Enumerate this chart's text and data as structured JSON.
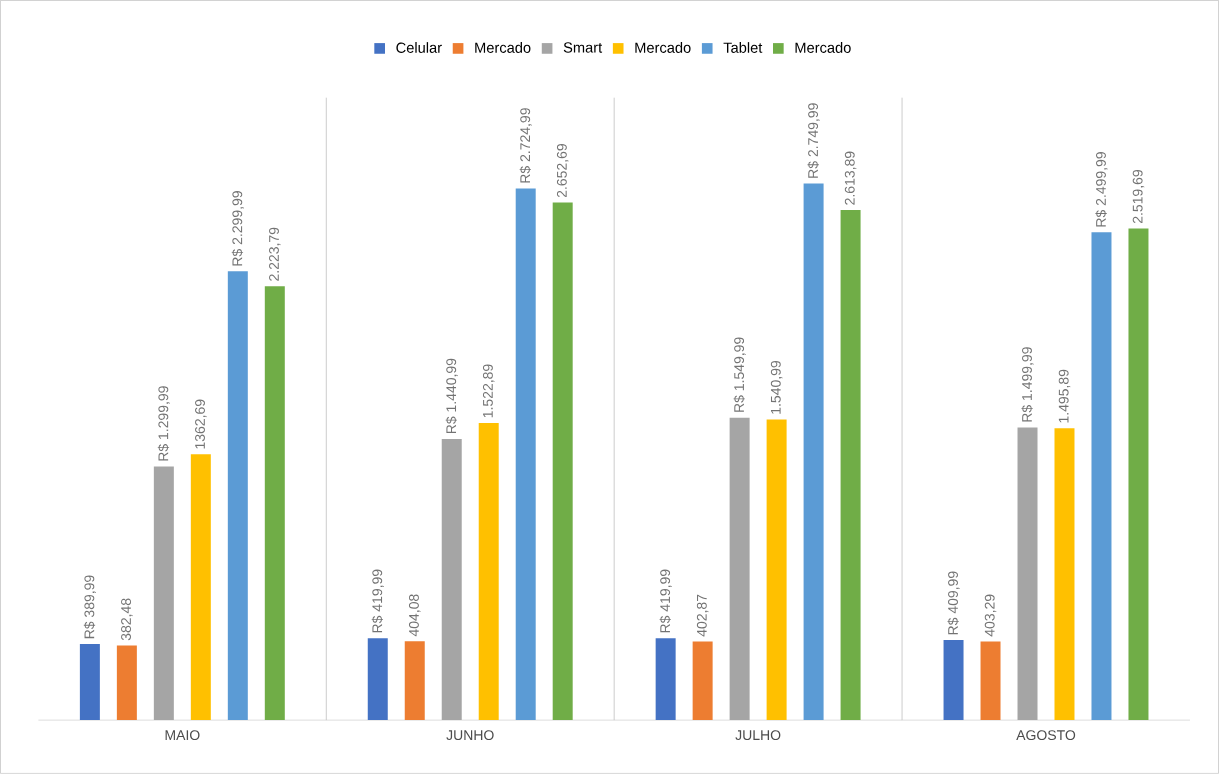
{
  "chart_data": {
    "type": "bar",
    "categories": [
      "MAIO",
      "JUNHO",
      "JULHO",
      "AGOSTO"
    ],
    "series": [
      {
        "name": "Celular",
        "color": "#4472c4",
        "values": [
          389.99,
          419.99,
          419.99,
          409.99
        ],
        "value_labels": [
          "R$ 389,99",
          "R$ 419,99",
          "R$ 419,99",
          "R$ 409,99"
        ]
      },
      {
        "name": "Mercado",
        "color": "#ed7d31",
        "values": [
          382.48,
          404.08,
          402.87,
          403.29
        ],
        "value_labels": [
          "382,48",
          "404,08",
          "402,87",
          "403,29"
        ]
      },
      {
        "name": "Smart",
        "color": "#a5a5a5",
        "values": [
          1299.99,
          1440.99,
          1549.99,
          1499.99
        ],
        "value_labels": [
          "R$ 1.299,99",
          "R$ 1.440,99",
          "R$ 1.549,99",
          "R$ 1.499,99"
        ]
      },
      {
        "name": "Mercado",
        "color": "#ffc000",
        "values": [
          1362.69,
          1522.89,
          1540.99,
          1495.89
        ],
        "value_labels": [
          "1362,69",
          "1.522,89",
          "1.540,99",
          "1.495,89"
        ]
      },
      {
        "name": "Tablet",
        "color": "#5b9bd5",
        "values": [
          2299.99,
          2724.99,
          2749.99,
          2499.99
        ],
        "value_labels": [
          "R$ 2.299,99",
          "R$ 2.724,99",
          "R$ 2.749,99",
          "R$ 2.499,99"
        ]
      },
      {
        "name": "Mercado",
        "color": "#70ad47",
        "values": [
          2223.79,
          2652.69,
          2613.89,
          2519.69
        ],
        "value_labels": [
          "2.223,79",
          "2.652,69",
          "2.613,89",
          "2.519,69"
        ]
      }
    ],
    "grid": "x",
    "legend": "top"
  }
}
